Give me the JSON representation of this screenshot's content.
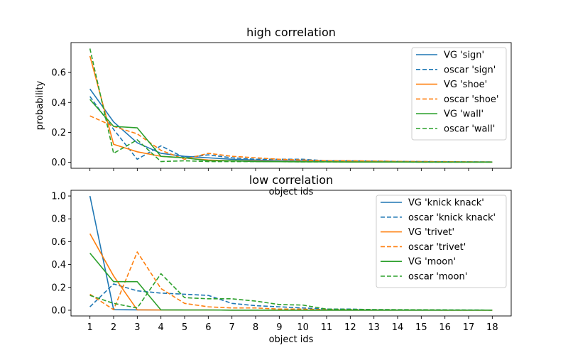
{
  "chart_data": [
    {
      "type": "line",
      "title": "high correlation",
      "xlabel": "object ids",
      "ylabel": "probability",
      "x": [
        1,
        2,
        3,
        4,
        5,
        6,
        7,
        8,
        9,
        10,
        11,
        12,
        13,
        14,
        15,
        16,
        17,
        18
      ],
      "ylim": [
        -0.04,
        0.8
      ],
      "yticks": [
        0.0,
        0.2,
        0.4,
        0.6
      ],
      "ytick_labels": [
        "0.0",
        "0.2",
        "0.4",
        "0.6"
      ],
      "xtick_labels": [],
      "grid": false,
      "legend": "top-right",
      "series": [
        {
          "name": "VG 'sign'",
          "color": "#1f77b4",
          "style": "solid",
          "values": [
            0.49,
            0.27,
            0.13,
            0.06,
            0.04,
            0.03,
            0.02,
            0.015,
            0.01,
            0.01,
            0.01,
            0.008,
            0.006,
            0.005,
            0.004,
            0.003,
            0.002,
            0.002
          ]
        },
        {
          "name": "oscar 'sign'",
          "color": "#1f77b4",
          "style": "dashed",
          "values": [
            0.44,
            0.22,
            0.02,
            0.11,
            0.03,
            0.05,
            0.03,
            0.02,
            0.02,
            0.02,
            0.01,
            0.01,
            0.008,
            0.006,
            0.005,
            0.004,
            0.003,
            0.002
          ]
        },
        {
          "name": "VG 'shoe'",
          "color": "#ff7f0e",
          "style": "solid",
          "values": [
            0.71,
            0.12,
            0.07,
            0.04,
            0.03,
            0.015,
            0.01,
            0.008,
            0.006,
            0.005,
            0.004,
            0.003,
            0.003,
            0.002,
            0.002,
            0.001,
            0.001,
            0.001
          ]
        },
        {
          "name": "oscar 'shoe'",
          "color": "#ff7f0e",
          "style": "dashed",
          "values": [
            0.31,
            0.24,
            0.19,
            0.08,
            0.02,
            0.06,
            0.04,
            0.03,
            0.02,
            0.015,
            0.01,
            0.01,
            0.008,
            0.006,
            0.005,
            0.004,
            0.003,
            0.002
          ]
        },
        {
          "name": "VG 'wall'",
          "color": "#2ca02c",
          "style": "solid",
          "values": [
            0.42,
            0.24,
            0.23,
            0.04,
            0.03,
            0.01,
            0.01,
            0.005,
            0.004,
            0.003,
            0.003,
            0.002,
            0.002,
            0.002,
            0.001,
            0.001,
            0.001,
            0.001
          ]
        },
        {
          "name": "oscar 'wall'",
          "color": "#2ca02c",
          "style": "dashed",
          "values": [
            0.76,
            0.06,
            0.15,
            0.005,
            0.01,
            0.005,
            0.005,
            0.005,
            0.004,
            0.003,
            0.003,
            0.002,
            0.002,
            0.002,
            0.001,
            0.001,
            0.001,
            0.001
          ]
        }
      ]
    },
    {
      "type": "line",
      "title": "low correlation",
      "xlabel": "object ids",
      "ylabel": "",
      "x": [
        1,
        2,
        3,
        4,
        5,
        6,
        7,
        8,
        9,
        10,
        11,
        12,
        13,
        14,
        15,
        16,
        17,
        18
      ],
      "ylim": [
        -0.05,
        1.05
      ],
      "yticks": [
        0.0,
        0.2,
        0.4,
        0.6,
        0.8,
        1.0
      ],
      "ytick_labels": [
        "0.0",
        "0.2",
        "0.4",
        "0.6",
        "0.8",
        "1.0"
      ],
      "xtick_labels": [
        "1",
        "2",
        "3",
        "4",
        "5",
        "6",
        "7",
        "8",
        "9",
        "10",
        "11",
        "12",
        "13",
        "14",
        "15",
        "16",
        "17",
        "18"
      ],
      "grid": false,
      "legend": "top-right",
      "series": [
        {
          "name": "VG 'knick knack'",
          "color": "#1f77b4",
          "style": "solid",
          "values": [
            1.0,
            0.005,
            0.003,
            0.002,
            0.002,
            0.002,
            0.001,
            0.001,
            0.001,
            0.001,
            0.001,
            0.001,
            0.001,
            0.001,
            0.001,
            0.001,
            0.001,
            0.001
          ]
        },
        {
          "name": "oscar 'knick knack'",
          "color": "#1f77b4",
          "style": "dashed",
          "values": [
            0.03,
            0.23,
            0.17,
            0.15,
            0.14,
            0.13,
            0.06,
            0.04,
            0.03,
            0.02,
            0.01,
            0.01,
            0.005,
            0.004,
            0.003,
            0.002,
            0.002,
            0.001
          ]
        },
        {
          "name": "VG 'trivet'",
          "color": "#ff7f0e",
          "style": "solid",
          "values": [
            0.67,
            0.3,
            0.003,
            0.002,
            0.002,
            0.002,
            0.001,
            0.001,
            0.001,
            0.001,
            0.001,
            0.001,
            0.001,
            0.001,
            0.001,
            0.001,
            0.001,
            0.001
          ]
        },
        {
          "name": "oscar 'trivet'",
          "color": "#ff7f0e",
          "style": "dashed",
          "values": [
            0.14,
            0.005,
            0.51,
            0.19,
            0.06,
            0.03,
            0.02,
            0.02,
            0.01,
            0.01,
            0.005,
            0.004,
            0.003,
            0.002,
            0.002,
            0.001,
            0.001,
            0.001
          ]
        },
        {
          "name": "VG 'moon'",
          "color": "#2ca02c",
          "style": "solid",
          "values": [
            0.5,
            0.25,
            0.25,
            0.003,
            0.002,
            0.002,
            0.001,
            0.001,
            0.001,
            0.001,
            0.001,
            0.001,
            0.001,
            0.001,
            0.001,
            0.001,
            0.001,
            0.001
          ]
        },
        {
          "name": "oscar 'moon'",
          "color": "#2ca02c",
          "style": "dashed",
          "values": [
            0.13,
            0.06,
            0.02,
            0.32,
            0.11,
            0.1,
            0.1,
            0.08,
            0.05,
            0.045,
            0.01,
            0.008,
            0.006,
            0.005,
            0.004,
            0.003,
            0.002,
            0.001
          ]
        }
      ]
    }
  ]
}
